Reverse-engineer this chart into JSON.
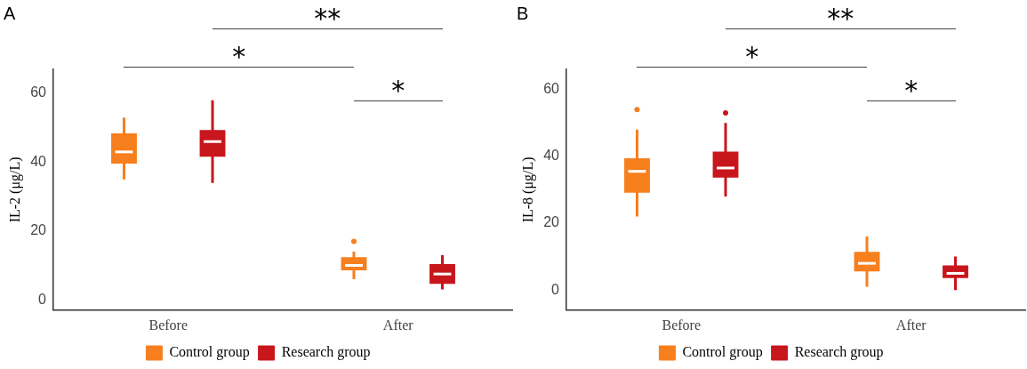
{
  "chart_data": [
    {
      "type": "box",
      "title": "A",
      "ylabel": "IL-2 (μg/L)",
      "categories": [
        "Before",
        "After"
      ],
      "ylim": [
        -3,
        67
      ],
      "yticks": [
        0,
        20,
        40,
        60
      ],
      "grid": false,
      "legend": "bottom",
      "annotations": [
        "**",
        "*",
        "*"
      ],
      "series": [
        {
          "name": "Control group",
          "color": "#f77f1e",
          "boxes": [
            {
              "low": 35,
              "q1": 40,
              "median": 43,
              "q3": 48,
              "high": 53
            },
            {
              "low": 6,
              "q1": 9,
              "median": 10,
              "q3": 12,
              "high": 14,
              "outliers": [
                17
              ]
            }
          ]
        },
        {
          "name": "Research group",
          "color": "#c8161d",
          "boxes": [
            {
              "low": 34,
              "q1": 42,
              "median": 46,
              "q3": 49,
              "high": 58
            },
            {
              "low": 3,
              "q1": 5,
              "median": 7.5,
              "q3": 10,
              "high": 13
            }
          ]
        }
      ]
    },
    {
      "type": "box",
      "title": "B",
      "ylabel": "IL-8 (μg/L)",
      "categories": [
        "Before",
        "After"
      ],
      "ylim": [
        -6,
        66
      ],
      "yticks": [
        0,
        20,
        40,
        60
      ],
      "grid": false,
      "legend": "bottom",
      "annotations": [
        "**",
        "*",
        "*"
      ],
      "series": [
        {
          "name": "Control group",
          "color": "#f77f1e",
          "boxes": [
            {
              "low": 22,
              "q1": 29.5,
              "median": 35.5,
              "q3": 39,
              "high": 48,
              "outliers": [
                54
              ]
            },
            {
              "low": 1,
              "q1": 6,
              "median": 8,
              "q3": 11,
              "high": 16
            }
          ]
        },
        {
          "name": "Research group",
          "color": "#c8161d",
          "boxes": [
            {
              "low": 28,
              "q1": 34,
              "median": 36.5,
              "q3": 41,
              "high": 50,
              "outliers": [
                53
              ]
            },
            {
              "low": 0,
              "q1": 4,
              "median": 5,
              "q3": 7,
              "high": 10
            }
          ]
        }
      ]
    }
  ]
}
